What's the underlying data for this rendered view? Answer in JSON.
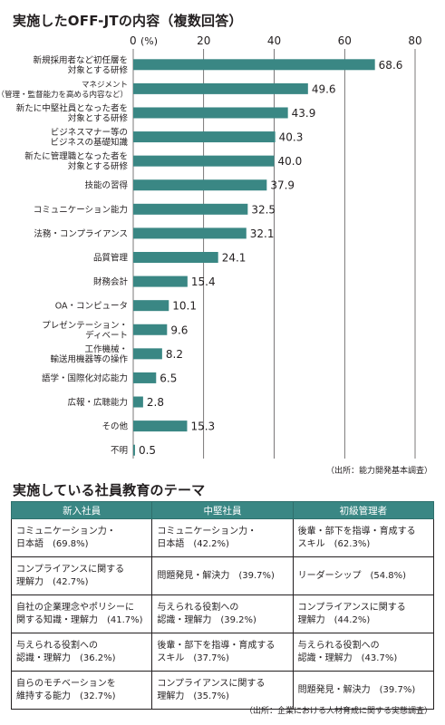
{
  "chart_title": "実施したOFF-JTの内容（複数回答）",
  "chart_data": {
    "type": "bar",
    "orientation": "horizontal",
    "title": "実施したOFF-JTの内容（複数回答）",
    "xlabel": "(%)",
    "xlim": [
      0,
      80
    ],
    "xticks": [
      "0",
      "20",
      "40",
      "60",
      "80"
    ],
    "grid": true,
    "bar_color": "#3a8784",
    "categories": [
      "新規採用者など初任層を\n対象とする研修",
      "マネジメント\n（管理・監督能力を高める内容など）",
      "新たに中堅社員となった者を\n対象とする研修",
      "ビジネスマナー等の\nビジネスの基礎知識",
      "新たに管理職となった者を\n対象とする研修",
      "技能の習得",
      "コミュニケーション能力",
      "法務・コンプライアンス",
      "品質管理",
      "財務会計",
      "OA・コンピュータ",
      "プレゼンテーション・\nディベート",
      "工作機械・\n輸送用機器等の操作",
      "語学・国際化対応能力",
      "広報・広聴能力",
      "その他",
      "不明"
    ],
    "values": [
      68.6,
      49.6,
      43.9,
      40.3,
      40.0,
      37.9,
      32.5,
      32.1,
      24.1,
      15.4,
      10.1,
      9.6,
      8.2,
      6.5,
      2.8,
      15.3,
      0.5
    ],
    "value_labels": [
      "68.6",
      "49.6",
      "43.9",
      "40.3",
      "40.0",
      "37.9",
      "32.5",
      "32.1",
      "24.1",
      "15.4",
      "10.1",
      "9.6",
      "8.2",
      "6.5",
      "2.8",
      "15.3",
      "0.5"
    ]
  },
  "chart_source": "（出所：能力開発基本調査）",
  "table_title": "実施している社員教育のテーマ",
  "table": {
    "headers": [
      "新入社員",
      "中堅社員",
      "初級管理者"
    ],
    "header_color": "#3a8784",
    "rows": [
      [
        "コミュニケーション力・\n日本語　(69.8%)",
        "コミュニケーション力・\n日本語　(42.2%)",
        "後輩・部下を指導・育成する\nスキル　(62.3%)"
      ],
      [
        "コンプライアンスに関する\n理解力　(42.7%)",
        "問題発見・解決力　(39.7%)",
        "リーダーシップ　(54.8%)"
      ],
      [
        "自社の企業理念やポリシーに\n関する知識・理解力　(41.7%)",
        "与えられる役割への\n認識・理解力　(39.2%)",
        "コンプライアンスに関する\n理解力　(44.2%)"
      ],
      [
        "与えられる役割への\n認識・理解力　(36.2%)",
        "後輩・部下を指導・育成する\nスキル　(37.7%)",
        "与えられる役割への\n認識・理解力　(43.7%)"
      ],
      [
        "自らのモチベーションを\n維持する能力　(32.7%)",
        "コンプライアンスに関する\n理解力　(35.7%)",
        "問題発見・解決力　(39.7%)"
      ]
    ]
  },
  "table_source": "（出所：企業における人材育成に関する実態調査）"
}
